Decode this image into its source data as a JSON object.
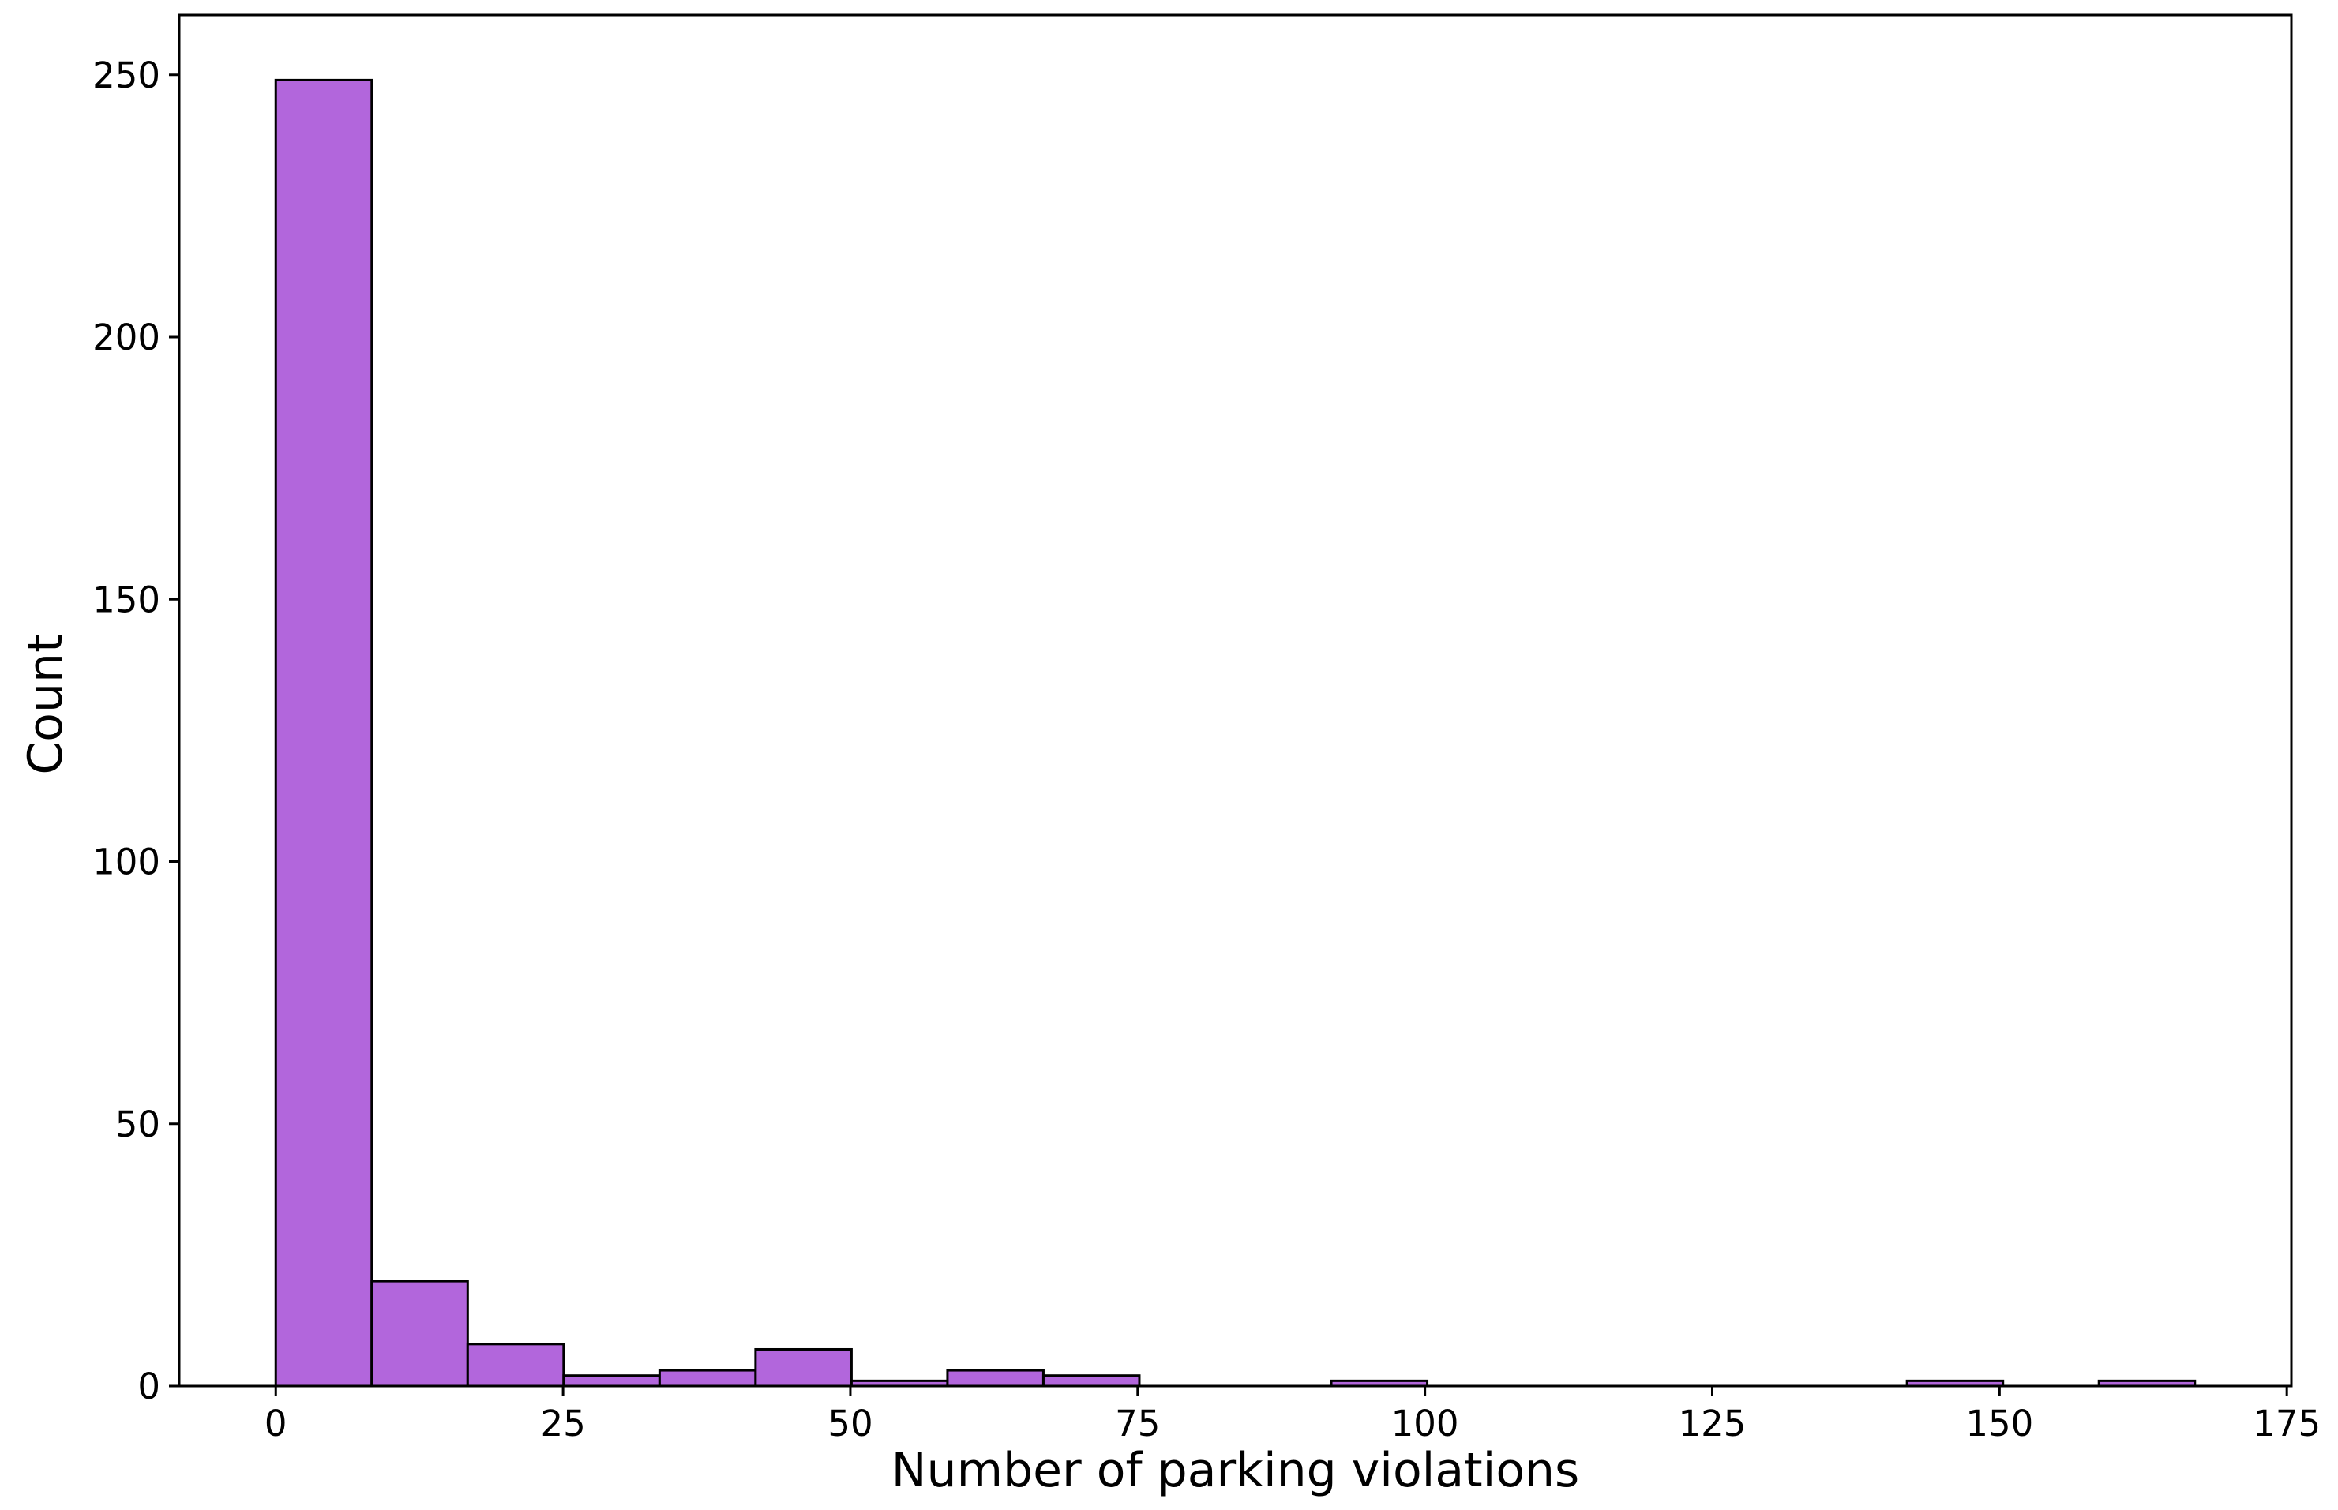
{
  "chart_data": {
    "type": "bar",
    "title": "",
    "xlabel": "Number of parking violations",
    "ylabel": "Count",
    "bar_color": "#b266dc",
    "edge_color": "#000000",
    "xlim": [
      -8.4,
      175.4
    ],
    "ylim": [
      0,
      261.4
    ],
    "xticks": [
      0,
      25,
      50,
      75,
      100,
      125,
      150,
      175
    ],
    "yticks": [
      0,
      50,
      100,
      150,
      200,
      250
    ],
    "grid": false,
    "bins": [
      {
        "x0": 0.0,
        "x1": 8.35,
        "count": 249
      },
      {
        "x0": 8.35,
        "x1": 16.7,
        "count": 20
      },
      {
        "x0": 16.7,
        "x1": 25.05,
        "count": 8
      },
      {
        "x0": 25.05,
        "x1": 33.4,
        "count": 2
      },
      {
        "x0": 33.4,
        "x1": 41.75,
        "count": 3
      },
      {
        "x0": 41.75,
        "x1": 50.1,
        "count": 7
      },
      {
        "x0": 50.1,
        "x1": 58.45,
        "count": 1
      },
      {
        "x0": 58.45,
        "x1": 66.8,
        "count": 3
      },
      {
        "x0": 66.8,
        "x1": 75.15,
        "count": 2
      },
      {
        "x0": 75.15,
        "x1": 83.5,
        "count": 0
      },
      {
        "x0": 83.5,
        "x1": 91.85,
        "count": 0
      },
      {
        "x0": 91.85,
        "x1": 100.2,
        "count": 1
      },
      {
        "x0": 100.2,
        "x1": 108.55,
        "count": 0
      },
      {
        "x0": 108.55,
        "x1": 116.9,
        "count": 0
      },
      {
        "x0": 116.9,
        "x1": 125.25,
        "count": 0
      },
      {
        "x0": 125.25,
        "x1": 133.6,
        "count": 0
      },
      {
        "x0": 133.6,
        "x1": 141.95,
        "count": 0
      },
      {
        "x0": 141.95,
        "x1": 150.3,
        "count": 1
      },
      {
        "x0": 150.3,
        "x1": 158.65,
        "count": 0
      },
      {
        "x0": 158.65,
        "x1": 167.0,
        "count": 1
      }
    ]
  }
}
